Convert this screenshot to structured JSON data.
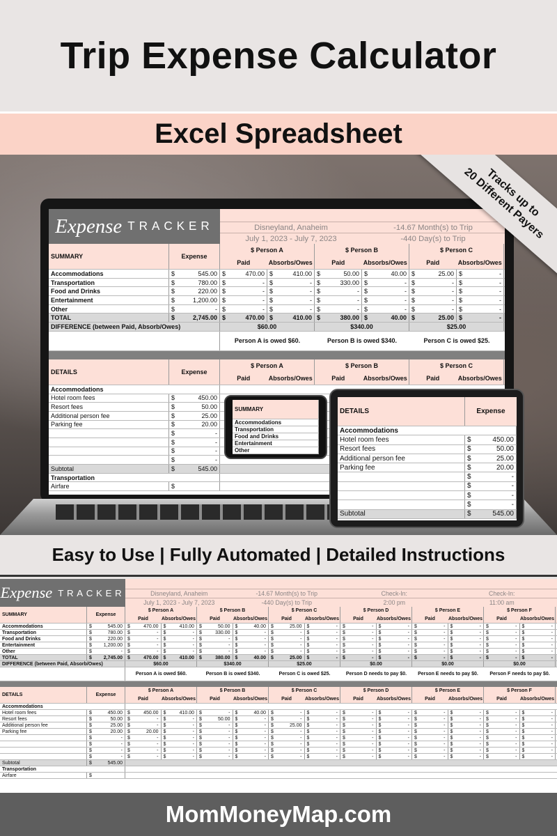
{
  "banner": {
    "title": "Trip Expense Calculator",
    "subtitle": "Excel Spreadsheet",
    "features": "Easy to Use | Fully Automated | Detailed Instructions",
    "footer": "MomMoneyMap.com"
  },
  "ribbon": {
    "line1": "Tracks up to",
    "line2": "20 Different Payers"
  },
  "colors": {
    "peach": "#fbd3c7",
    "sheet_pink": "#fde0d8",
    "logo_grey": "#707070",
    "total_grey": "#d9d9d9",
    "footer": "#5e5e5e"
  },
  "sheet": {
    "logo": {
      "script": "Expense",
      "caps": "TRACKER"
    },
    "info": [
      [
        "Disneyland, Anaheim",
        "July 1, 2023 - July 7, 2023"
      ],
      [
        "-14.67 Month(s) to Trip",
        "-440 Day(s) to Trip"
      ],
      [
        "Check-In:",
        "2:00 pm"
      ],
      [
        "Check-In:",
        "11:00 am"
      ]
    ],
    "currency": "$",
    "expense_label": "Expense",
    "paid_label": "Paid",
    "owes_label": "Absorbs/Owes",
    "persons": [
      "$ Person A",
      "$ Person B",
      "$ Person C",
      "$ Person D",
      "$ Person E",
      "$ Person F"
    ],
    "summary": {
      "title": "SUMMARY",
      "rows": [
        {
          "label": "Accommodations",
          "expense": "545.00",
          "persons": [
            [
              "470.00",
              "410.00"
            ],
            [
              "50.00",
              "40.00"
            ],
            [
              "25.00",
              "-"
            ],
            [
              "-",
              "-"
            ],
            [
              "-",
              "-"
            ],
            [
              "-",
              "-"
            ]
          ]
        },
        {
          "label": "Transportation",
          "expense": "780.00",
          "persons": [
            [
              "-",
              "-"
            ],
            [
              "330.00",
              "-"
            ],
            [
              "-",
              "-"
            ],
            [
              "-",
              "-"
            ],
            [
              "-",
              "-"
            ],
            [
              "-",
              "-"
            ]
          ]
        },
        {
          "label": "Food and Drinks",
          "expense": "220.00",
          "persons": [
            [
              "-",
              "-"
            ],
            [
              "-",
              "-"
            ],
            [
              "-",
              "-"
            ],
            [
              "-",
              "-"
            ],
            [
              "-",
              "-"
            ],
            [
              "-",
              "-"
            ]
          ]
        },
        {
          "label": "Entertainment",
          "expense": "1,200.00",
          "persons": [
            [
              "-",
              "-"
            ],
            [
              "-",
              "-"
            ],
            [
              "-",
              "-"
            ],
            [
              "-",
              "-"
            ],
            [
              "-",
              "-"
            ],
            [
              "-",
              "-"
            ]
          ]
        },
        {
          "label": "Other",
          "expense": "-",
          "persons": [
            [
              "-",
              "-"
            ],
            [
              "-",
              "-"
            ],
            [
              "-",
              "-"
            ],
            [
              "-",
              "-"
            ],
            [
              "-",
              "-"
            ],
            [
              "-",
              "-"
            ]
          ]
        }
      ],
      "total": {
        "label": "TOTAL",
        "expense": "2,745.00",
        "persons": [
          [
            "470.00",
            "410.00"
          ],
          [
            "380.00",
            "40.00"
          ],
          [
            "25.00",
            "-"
          ],
          [
            "-",
            "-"
          ],
          [
            "-",
            "-"
          ],
          [
            "-",
            "-"
          ]
        ]
      },
      "difference_label": "DIFFERENCE (between Paid, Absorb/Owes)",
      "differences": [
        "$60.00",
        "$340.00",
        "$25.00",
        "$0.00",
        "$0.00",
        "$0.00"
      ],
      "messages": [
        "Person A is owed $60.",
        "Person B is owed $340.",
        "Person C is owed $25.",
        "Person D needs to pay $0.",
        "Person E needs to pay $0.",
        "Person F needs to pay $0."
      ]
    },
    "details": {
      "title": "DETAILS",
      "section": "Accommodations",
      "rows": [
        {
          "label": "Hotel room fees",
          "expense": "450.00",
          "persons": [
            [
              "450.00",
              "410.00"
            ],
            [
              "-",
              "40.00"
            ],
            [
              "-",
              "-"
            ],
            [
              "-",
              "-"
            ],
            [
              "-",
              "-"
            ],
            [
              "-",
              "-"
            ]
          ]
        },
        {
          "label": "Resort fees",
          "expense": "50.00",
          "persons": [
            [
              "-",
              "-"
            ],
            [
              "50.00",
              "-"
            ],
            [
              "-",
              "-"
            ],
            [
              "-",
              "-"
            ],
            [
              "-",
              "-"
            ],
            [
              "-",
              "-"
            ]
          ]
        },
        {
          "label": "Additional person fee",
          "expense": "25.00",
          "persons": [
            [
              "-",
              "-"
            ],
            [
              "-",
              "-"
            ],
            [
              "25.00",
              "-"
            ],
            [
              "-",
              "-"
            ],
            [
              "-",
              "-"
            ],
            [
              "-",
              "-"
            ]
          ]
        },
        {
          "label": "Parking fee",
          "expense": "20.00",
          "persons": [
            [
              "20.00",
              "-"
            ],
            [
              "-",
              "-"
            ],
            [
              "-",
              "-"
            ],
            [
              "-",
              "-"
            ],
            [
              "-",
              "-"
            ],
            [
              "-",
              "-"
            ]
          ]
        },
        {
          "label": "",
          "expense": "-",
          "persons": [
            [
              "-",
              "-"
            ],
            [
              "-",
              "-"
            ],
            [
              "-",
              "-"
            ],
            [
              "-",
              "-"
            ],
            [
              "-",
              "-"
            ],
            [
              "-",
              "-"
            ]
          ]
        },
        {
          "label": "",
          "expense": "-",
          "persons": [
            [
              "-",
              "-"
            ],
            [
              "-",
              "-"
            ],
            [
              "-",
              "-"
            ],
            [
              "-",
              "-"
            ],
            [
              "-",
              "-"
            ],
            [
              "-",
              "-"
            ]
          ]
        },
        {
          "label": "",
          "expense": "-",
          "persons": [
            [
              "-",
              "-"
            ],
            [
              "-",
              "-"
            ],
            [
              "-",
              "-"
            ],
            [
              "-",
              "-"
            ],
            [
              "-",
              "-"
            ],
            [
              "-",
              "-"
            ]
          ]
        },
        {
          "label": "",
          "expense": "-",
          "persons": [
            [
              "-",
              "-"
            ],
            [
              "-",
              "-"
            ],
            [
              "-",
              "-"
            ],
            [
              "-",
              "-"
            ],
            [
              "-",
              "-"
            ],
            [
              "-",
              "-"
            ]
          ]
        }
      ],
      "subtotal": {
        "label": "Subtotal",
        "expense": "545.00"
      },
      "next_section": "Transportation",
      "next_item": "Airfare"
    }
  }
}
